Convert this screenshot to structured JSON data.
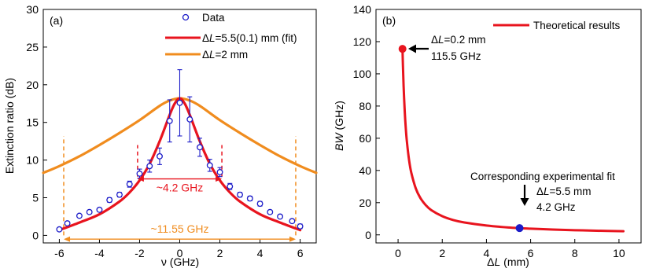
{
  "chart_data": [
    {
      "panel_label": "(a)",
      "type": "scatter",
      "xlabel": "ν (GHz)",
      "ylabel": "Extinction ratio (dB)",
      "xlim": [
        -6.8,
        6.8
      ],
      "ylim": [
        -1,
        30
      ],
      "xticks": [
        -6,
        -4,
        -2,
        0,
        2,
        4,
        6
      ],
      "xtick_labels": [
        "-6",
        "-4",
        "-2",
        "0",
        "2",
        "4",
        "6"
      ],
      "yticks": [
        0,
        5,
        10,
        15,
        20,
        25,
        30
      ],
      "ytick_labels": [
        "0",
        "5",
        "10",
        "15",
        "20",
        "25",
        "30"
      ],
      "legend_placement": "top-right",
      "series": [
        {
          "name": "Data",
          "kind": "points",
          "color": "#1c1cc8",
          "x": [
            -6,
            -5.6,
            -5,
            -4.5,
            -4,
            -3.5,
            -3,
            -2.5,
            -2,
            -1.5,
            -1,
            -0.5,
            0,
            0.5,
            1,
            1.5,
            2,
            2.5,
            3,
            3.5,
            4,
            4.5,
            5,
            5.6,
            6
          ],
          "y": [
            0.8,
            1.6,
            2.6,
            3.1,
            3.4,
            4.7,
            5.4,
            6.8,
            8.2,
            9.2,
            10.5,
            15.2,
            17.6,
            15.4,
            11.7,
            9.3,
            8.4,
            6.5,
            5.4,
            4.9,
            4.2,
            3.1,
            2.5,
            1.9,
            1.2
          ],
          "err": [
            0.2,
            0.2,
            0.2,
            0.2,
            0.2,
            0.3,
            0.3,
            0.4,
            0.6,
            0.8,
            1.1,
            2.8,
            4.4,
            3.0,
            1.2,
            0.8,
            0.6,
            0.4,
            0.3,
            0.3,
            0.3,
            0.2,
            0.2,
            0.2,
            0.3
          ]
        },
        {
          "name": "ΔL=5.5(0.1) mm (fit)",
          "name_parts": [
            "Δ",
            "L",
            "=5.5(0.1) mm (fit)"
          ],
          "kind": "line",
          "color": "#e8141e",
          "x": [
            -6,
            -5,
            -4,
            -3,
            -2.5,
            -2,
            -1.5,
            -1,
            -0.5,
            -0.25,
            0,
            0.25,
            0.5,
            1,
            1.5,
            2,
            2.5,
            3,
            4,
            5,
            6
          ],
          "y": [
            0.7,
            1.7,
            2.8,
            4.5,
            5.7,
            7.3,
            9.5,
            12.5,
            16.0,
            17.5,
            18.2,
            17.5,
            16.0,
            12.5,
            9.5,
            7.3,
            5.7,
            4.5,
            2.8,
            1.7,
            0.7
          ]
        },
        {
          "name": "ΔL=2 mm",
          "name_parts": [
            "Δ",
            "L",
            "=2 mm"
          ],
          "kind": "line",
          "color": "#f08c1e",
          "x": [
            -6.8,
            -6,
            -5,
            -4,
            -3,
            -2,
            -1,
            -0.5,
            0,
            0.5,
            1,
            2,
            3,
            4,
            5,
            6,
            6.8
          ],
          "y": [
            8.3,
            9.2,
            10.5,
            12.0,
            13.6,
            15.3,
            17.2,
            17.9,
            18.2,
            17.9,
            17.2,
            15.3,
            13.6,
            12.0,
            10.5,
            9.2,
            8.3
          ]
        }
      ],
      "annotations": [
        {
          "text": "~4.2 GHz",
          "color": "#e8141e",
          "x_from": -2.1,
          "x_to": 2.1,
          "y": 7.5
        },
        {
          "text": "~11.55 GHz",
          "color": "#f08c1e",
          "x_from": -5.78,
          "x_to": 5.78,
          "y": -0.5
        }
      ],
      "markers": [
        {
          "x": -2.1,
          "color": "#e8141e",
          "y_from": 7.8,
          "y_to": 12
        },
        {
          "x": 2.1,
          "color": "#e8141e",
          "y_from": 7.8,
          "y_to": 12
        },
        {
          "x": -5.78,
          "color": "#f08c1e",
          "y_from": 0,
          "y_to": 13.2
        },
        {
          "x": 5.78,
          "color": "#f08c1e",
          "y_from": 0,
          "y_to": 13.2
        }
      ]
    },
    {
      "panel_label": "(b)",
      "type": "line",
      "xlabel_parts": [
        "Δ",
        "L",
        " (mm)"
      ],
      "ylabel_parts": [
        "BW",
        " (GHz)"
      ],
      "xlim": [
        -1,
        11
      ],
      "ylim": [
        -5,
        140
      ],
      "xticks": [
        0,
        2,
        4,
        6,
        8,
        10
      ],
      "xtick_labels": [
        "0",
        "2",
        "4",
        "6",
        "8",
        "10"
      ],
      "yticks": [
        0,
        20,
        40,
        60,
        80,
        100,
        120,
        140
      ],
      "ytick_labels": [
        "0",
        "20",
        "40",
        "60",
        "80",
        "100",
        "120",
        "140"
      ],
      "legend_placement": "top-right",
      "series": [
        {
          "name": "Theoretical results",
          "kind": "line",
          "color": "#e8141e",
          "x": [
            0.2,
            0.22,
            0.25,
            0.3,
            0.35,
            0.4,
            0.5,
            0.6,
            0.8,
            1.0,
            1.25,
            1.5,
            2,
            2.5,
            3,
            4,
            5,
            6,
            7,
            8,
            9,
            10.2
          ],
          "y": [
            115.5,
            105,
            92.4,
            77,
            66,
            57.8,
            46.2,
            38.5,
            28.9,
            23.1,
            18.5,
            15.4,
            11.6,
            9.2,
            7.7,
            5.8,
            4.6,
            3.85,
            3.3,
            2.9,
            2.57,
            2.26
          ]
        }
      ],
      "points": [
        {
          "x": 0.2,
          "y": 115.5,
          "color": "#e8141e",
          "label_top_parts": [
            "Δ",
            "L",
            "=0.2 mm"
          ],
          "label_bottom": "115.5 GHz"
        },
        {
          "x": 5.5,
          "y": 4.2,
          "color": "#1c1cc8",
          "label_title": "Corresponding experimental fit",
          "label_top_parts": [
            "Δ",
            "L",
            "=5.5 mm"
          ],
          "label_bottom": "4.2 GHz"
        }
      ]
    }
  ]
}
